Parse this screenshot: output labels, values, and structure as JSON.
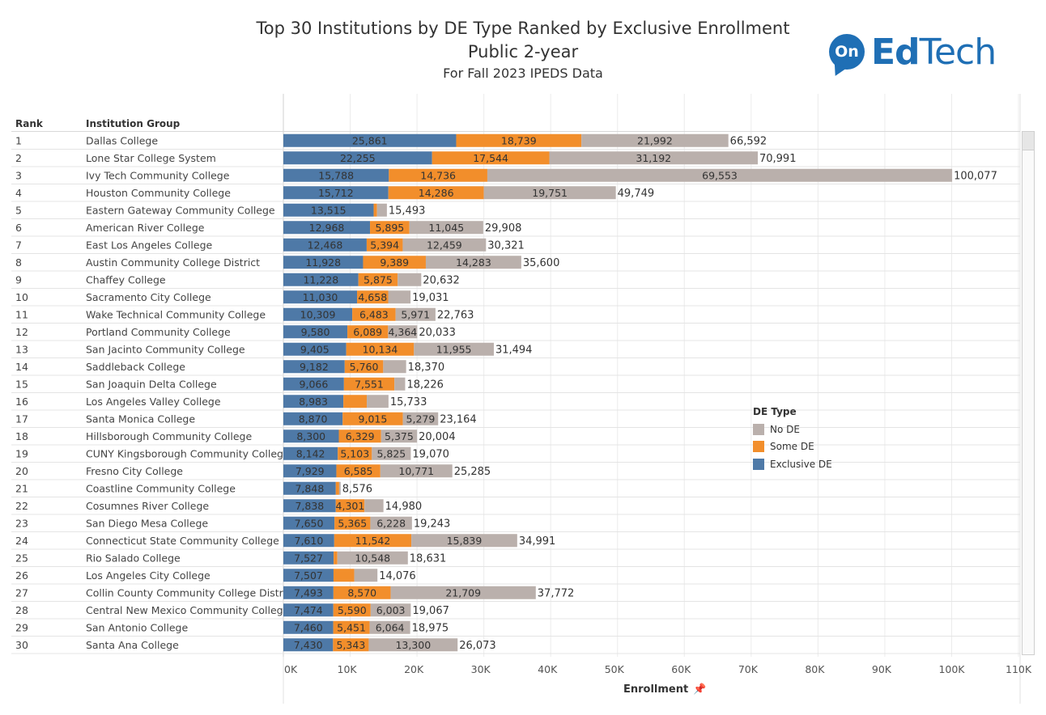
{
  "title": {
    "line1": "Top 30 Institutions by DE Type Ranked by Exclusive Enrollment",
    "line2": "Public 2-year",
    "line3": "For Fall 2023 IPEDS Data"
  },
  "logo": {
    "badge": "On",
    "word_bold": "Ed",
    "word_rest": "Tech"
  },
  "headers": {
    "rank": "Rank",
    "institution": "Institution Group"
  },
  "legend": {
    "title": "DE Type",
    "items": [
      {
        "label": "No DE",
        "color": "#bab0ac"
      },
      {
        "label": "Some DE",
        "color": "#f28e2b"
      },
      {
        "label": "Exclusive DE",
        "color": "#4e79a7"
      }
    ]
  },
  "chart_data": {
    "type": "bar",
    "orientation": "horizontal",
    "stacked": true,
    "title": "Top 30 Institutions by DE Type Ranked by Exclusive Enrollment",
    "subtitle": "Public 2-year — For Fall 2023 IPEDS Data",
    "xlabel": "Enrollment",
    "xlim": [
      0,
      110000
    ],
    "xticks": [
      "0K",
      "10K",
      "20K",
      "30K",
      "40K",
      "50K",
      "60K",
      "70K",
      "80K",
      "90K",
      "100K",
      "110K"
    ],
    "ranks": [
      "1",
      "2",
      "3",
      "4",
      "5",
      "6",
      "7",
      "8",
      "9",
      "10",
      "11",
      "12",
      "13",
      "14",
      "15",
      "16",
      "17",
      "18",
      "19",
      "20",
      "21",
      "22",
      "23",
      "24",
      "25",
      "26",
      "27",
      "28",
      "29",
      "30"
    ],
    "categories": [
      "Dallas College",
      "Lone Star College System",
      "Ivy Tech Community College",
      "Houston Community College",
      "Eastern Gateway Community College",
      "American River College",
      "East Los Angeles College",
      "Austin Community College District",
      "Chaffey College",
      "Sacramento City College",
      "Wake Technical Community College",
      "Portland Community College",
      "San Jacinto Community College",
      "Saddleback College",
      "San Joaquin Delta College",
      "Los Angeles Valley College",
      "Santa Monica College",
      "Hillsborough Community College",
      "CUNY Kingsborough Community College",
      "Fresno City College",
      "Coastline Community College",
      "Cosumnes River College",
      "San Diego Mesa College",
      "Connecticut State Community College",
      "Rio Salado College",
      "Los Angeles City College",
      "Collin County Community College Distr..",
      "Central New Mexico Community College",
      "San Antonio College",
      "Santa Ana College"
    ],
    "series": [
      {
        "name": "Exclusive DE",
        "color": "#4e79a7",
        "values": [
          25861,
          22255,
          15788,
          15712,
          13515,
          12968,
          12468,
          11928,
          11228,
          11030,
          10309,
          9580,
          9405,
          9182,
          9066,
          8983,
          8870,
          8300,
          8142,
          7929,
          7848,
          7838,
          7650,
          7610,
          7527,
          7507,
          7493,
          7474,
          7460,
          7430
        ],
        "labels": [
          "25,861",
          "22,255",
          "15,788",
          "15,712",
          "13,515",
          "12,968",
          "12,468",
          "11,928",
          "11,228",
          "11,030",
          "10,309",
          "9,580",
          "9,405",
          "9,182",
          "9,066",
          "8,983",
          "8,870",
          "8,300",
          "8,142",
          "7,929",
          "7,848",
          "7,838",
          "7,650",
          "7,610",
          "7,527",
          "7,507",
          "7,493",
          "7,474",
          "7,460",
          "7,430"
        ]
      },
      {
        "name": "Some DE",
        "color": "#f28e2b",
        "values": [
          18739,
          17544,
          14736,
          14286,
          500,
          5895,
          5394,
          9389,
          5875,
          4658,
          6483,
          6089,
          10134,
          5760,
          7551,
          3500,
          9015,
          6329,
          5103,
          6585,
          500,
          4301,
          5365,
          11542,
          556,
          3100,
          8570,
          5590,
          5451,
          5343
        ],
        "labels": [
          "18,739",
          "17,544",
          "14,736",
          "14,286",
          "",
          "5,895",
          "5,394",
          "9,389",
          "5,875",
          "4,658",
          "6,483",
          "6,089",
          "10,134",
          "5,760",
          "7,551",
          "",
          "9,015",
          "6,329",
          "5,103",
          "6,585",
          "",
          "4,301",
          "5,365",
          "11,542",
          "",
          "",
          "8,570",
          "5,590",
          "5,451",
          "5,343"
        ]
      },
      {
        "name": "No DE",
        "color": "#bab0ac",
        "values": [
          21992,
          31192,
          69553,
          19751,
          1478,
          11045,
          12459,
          14283,
          3529,
          3343,
          5971,
          4364,
          11955,
          3428,
          1609,
          3250,
          5279,
          5375,
          5825,
          10771,
          228,
          2841,
          6228,
          15839,
          10548,
          3469,
          21709,
          6003,
          6064,
          13300
        ],
        "labels": [
          "21,992",
          "31,192",
          "69,553",
          "19,751",
          "",
          "11,045",
          "12,459",
          "14,283",
          "",
          "",
          "5,971",
          "4,364",
          "11,955",
          "",
          "",
          "",
          "5,279",
          "5,375",
          "5,825",
          "10,771",
          "",
          "",
          "6,228",
          "15,839",
          "10,548",
          "",
          "21,709",
          "6,003",
          "6,064",
          "13,300"
        ]
      }
    ],
    "totals": [
      "66,592",
      "70,991",
      "100,077",
      "49,749",
      "15,493",
      "29,908",
      "30,321",
      "35,600",
      "20,632",
      "19,031",
      "22,763",
      "20,033",
      "31,494",
      "18,370",
      "18,226",
      "15,733",
      "23,164",
      "20,004",
      "19,070",
      "25,285",
      "8,576",
      "14,980",
      "19,243",
      "34,991",
      "18,631",
      "14,076",
      "37,772",
      "19,067",
      "18,975",
      "26,073"
    ]
  },
  "scrollbar": {
    "label": "vertical-scroll"
  }
}
